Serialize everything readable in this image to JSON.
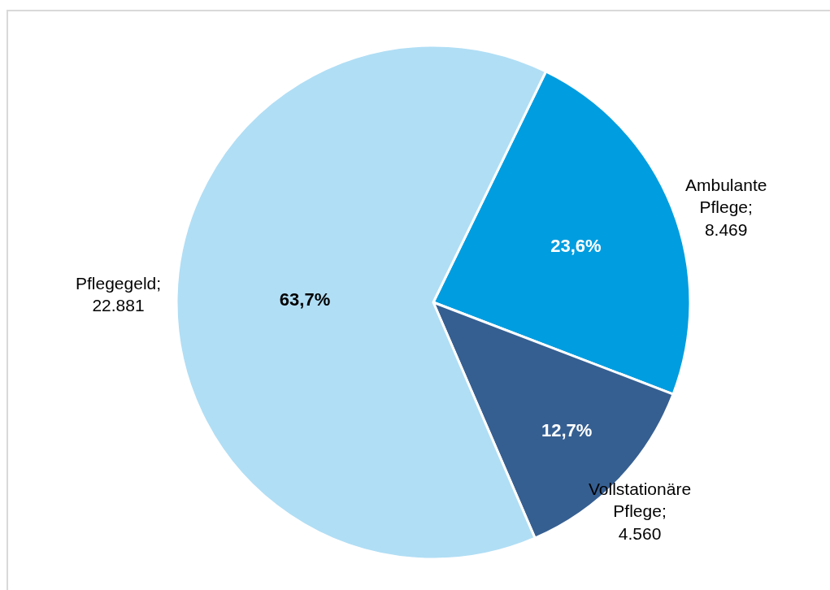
{
  "chart_data": {
    "type": "pie",
    "categories": [
      "Ambulante Pflege; 8.469",
      "Vollstationäre Pflege; 4.560",
      "Pflegegeld; 22.881"
    ],
    "values": [
      23.6,
      12.7,
      63.7
    ],
    "value_labels": [
      "23,6%",
      "12,7%",
      "63,7%"
    ],
    "colors": [
      "#009de0",
      "#365f91",
      "#b0def5"
    ],
    "legend": false
  }
}
